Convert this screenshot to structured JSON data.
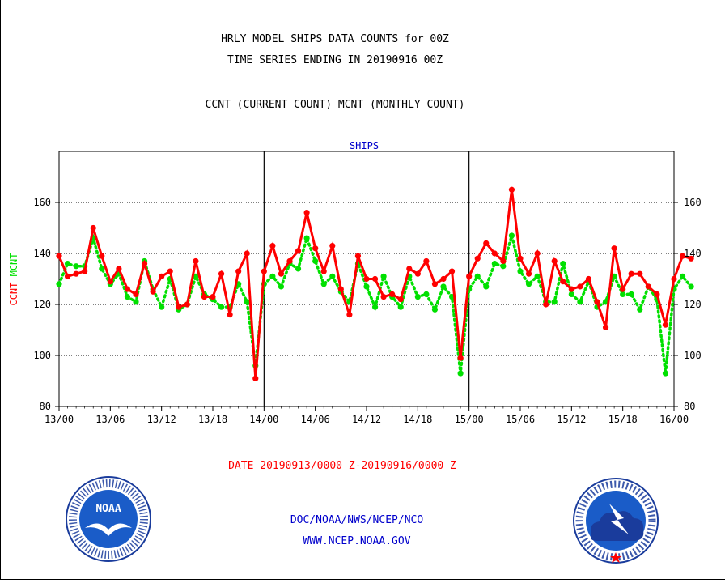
{
  "header": {
    "line1": "HRLY MODEL SHIPS DATA COUNTS for 00Z",
    "line2": "TIME SERIES ENDING IN 20190916 00Z",
    "line3": "CCNT (CURRENT COUNT) MCNT (MONTHLY COUNT)"
  },
  "footer": {
    "date_range": "DATE 20190913/0000 Z-20190916/0000 Z",
    "org": "DOC/NOAA/NWS/NCEP/NCO",
    "url": "WWW.NCEP.NOAA.GOV"
  },
  "logos": {
    "noaa_text": "NOAA",
    "noaa_ring": "NATIONAL OCEANIC AND ATMOSPHERIC ADMINISTRATION · U.S. DEPARTMENT OF COMMERCE",
    "nws_ring": "NATIONAL WEATHER SERVICE"
  },
  "colors": {
    "ccnt": "#ff0000",
    "mcnt": "#00e000",
    "title": "#0000cc",
    "date": "#ff0000",
    "footer": "#0000cc"
  },
  "chart_data": {
    "type": "line",
    "title": "SHIPS",
    "xlabel": "",
    "ylabel_parts": [
      "CCNT",
      "MCNT"
    ],
    "ylim": [
      80,
      180
    ],
    "yticks": [
      80,
      100,
      120,
      140,
      160
    ],
    "xlim": [
      0,
      72
    ],
    "xtick_positions": [
      0,
      6,
      12,
      18,
      24,
      30,
      36,
      42,
      48,
      54,
      60,
      66,
      72
    ],
    "xtick_labels": [
      "13/00",
      "13/06",
      "13/12",
      "13/18",
      "14/00",
      "14/06",
      "14/12",
      "14/18",
      "15/00",
      "15/06",
      "15/12",
      "15/18",
      "16/00"
    ],
    "day_dividers": [
      24,
      48
    ],
    "grid": true,
    "series": [
      {
        "name": "CCNT",
        "color": "#ff0000",
        "style": "solid",
        "values": [
          139,
          131,
          132,
          133,
          150,
          139,
          129,
          134,
          126,
          124,
          136,
          125,
          131,
          133,
          119,
          120,
          137,
          123,
          123,
          132,
          116,
          133,
          140,
          91,
          133,
          143,
          132,
          137,
          141,
          156,
          142,
          133,
          143,
          126,
          116,
          139,
          130,
          130,
          123,
          124,
          122,
          134,
          132,
          137,
          128,
          130,
          133,
          99,
          131,
          138,
          144,
          140,
          137,
          165,
          138,
          132,
          140,
          120,
          137,
          129,
          126,
          127,
          130,
          121,
          111,
          142,
          126,
          132,
          132,
          127,
          124,
          112,
          130,
          139,
          138
        ]
      },
      {
        "name": "MCNT",
        "color": "#00e000",
        "style": "dotted",
        "values": [
          128,
          136,
          135,
          135,
          146,
          134,
          128,
          132,
          123,
          121,
          137,
          126,
          119,
          130,
          118,
          120,
          131,
          124,
          122,
          119,
          119,
          128,
          121,
          96,
          128,
          131,
          127,
          136,
          134,
          146,
          137,
          128,
          131,
          125,
          121,
          136,
          127,
          119,
          131,
          123,
          119,
          131,
          123,
          124,
          118,
          127,
          123,
          93,
          126,
          131,
          127,
          136,
          135,
          147,
          133,
          128,
          131,
          121,
          121,
          136,
          124,
          121,
          129,
          119,
          121,
          131,
          124,
          124,
          118,
          127,
          122,
          93,
          126,
          131,
          127
        ]
      }
    ]
  }
}
